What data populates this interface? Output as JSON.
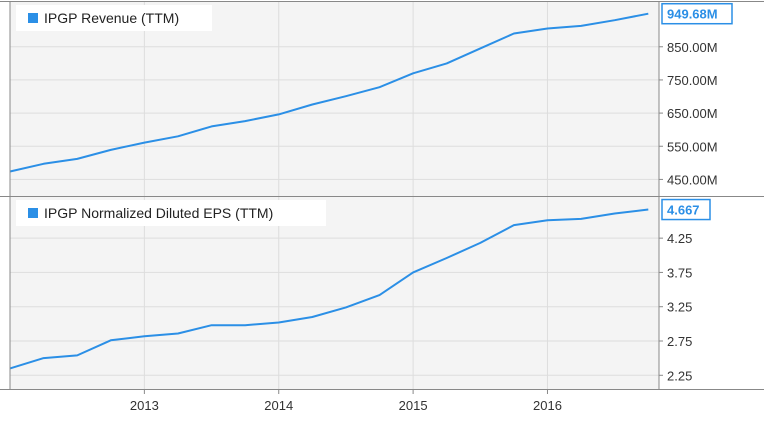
{
  "colors": {
    "series": "#2b8fe6",
    "plot_bg": "#f4f4f4",
    "grid": "#dddddd",
    "axis": "#888888",
    "legend_bg": "#ffffff"
  },
  "x_ticks": [
    "2013",
    "2014",
    "2015",
    "2016"
  ],
  "chart_data": [
    {
      "type": "line",
      "legend": "IPGP Revenue (TTM)",
      "last_value_label": "949.68M",
      "x_range": [
        2012.0,
        2016.83
      ],
      "y_range": [
        400,
        985
      ],
      "y_ticks": [
        "450.00M",
        "550.00M",
        "650.00M",
        "750.00M",
        "850.00M"
      ],
      "y_tick_values": [
        450,
        550,
        650,
        750,
        850
      ],
      "grid": true,
      "series": [
        {
          "x": [
            2012.0,
            2012.25,
            2012.5,
            2012.75,
            2013.0,
            2013.25,
            2013.5,
            2013.75,
            2014.0,
            2014.25,
            2014.5,
            2014.75,
            2015.0,
            2015.25,
            2015.5,
            2015.75,
            2016.0,
            2016.25,
            2016.5,
            2016.75
          ],
          "values": [
            474,
            497,
            512,
            539,
            561,
            580,
            610,
            626,
            646,
            676,
            701,
            728,
            770,
            800,
            845,
            890,
            905,
            913,
            930,
            949.68
          ]
        }
      ]
    },
    {
      "type": "line",
      "legend": "IPGP Normalized Diluted EPS (TTM)",
      "last_value_label": "4.667",
      "x_range": [
        2012.0,
        2016.83
      ],
      "y_range": [
        2.05,
        4.85
      ],
      "y_ticks": [
        "2.25",
        "2.75",
        "3.25",
        "3.75",
        "4.25"
      ],
      "y_tick_values": [
        2.25,
        2.75,
        3.25,
        3.75,
        4.25
      ],
      "grid": true,
      "series": [
        {
          "x": [
            2012.0,
            2012.25,
            2012.5,
            2012.75,
            2013.0,
            2013.25,
            2013.5,
            2013.75,
            2014.0,
            2014.25,
            2014.5,
            2014.75,
            2015.0,
            2015.25,
            2015.5,
            2015.75,
            2016.0,
            2016.25,
            2016.5,
            2016.75
          ],
          "values": [
            2.35,
            2.5,
            2.54,
            2.76,
            2.82,
            2.86,
            2.98,
            2.98,
            3.02,
            3.1,
            3.24,
            3.42,
            3.75,
            3.96,
            4.18,
            4.44,
            4.51,
            4.53,
            4.61,
            4.667
          ]
        }
      ]
    }
  ]
}
